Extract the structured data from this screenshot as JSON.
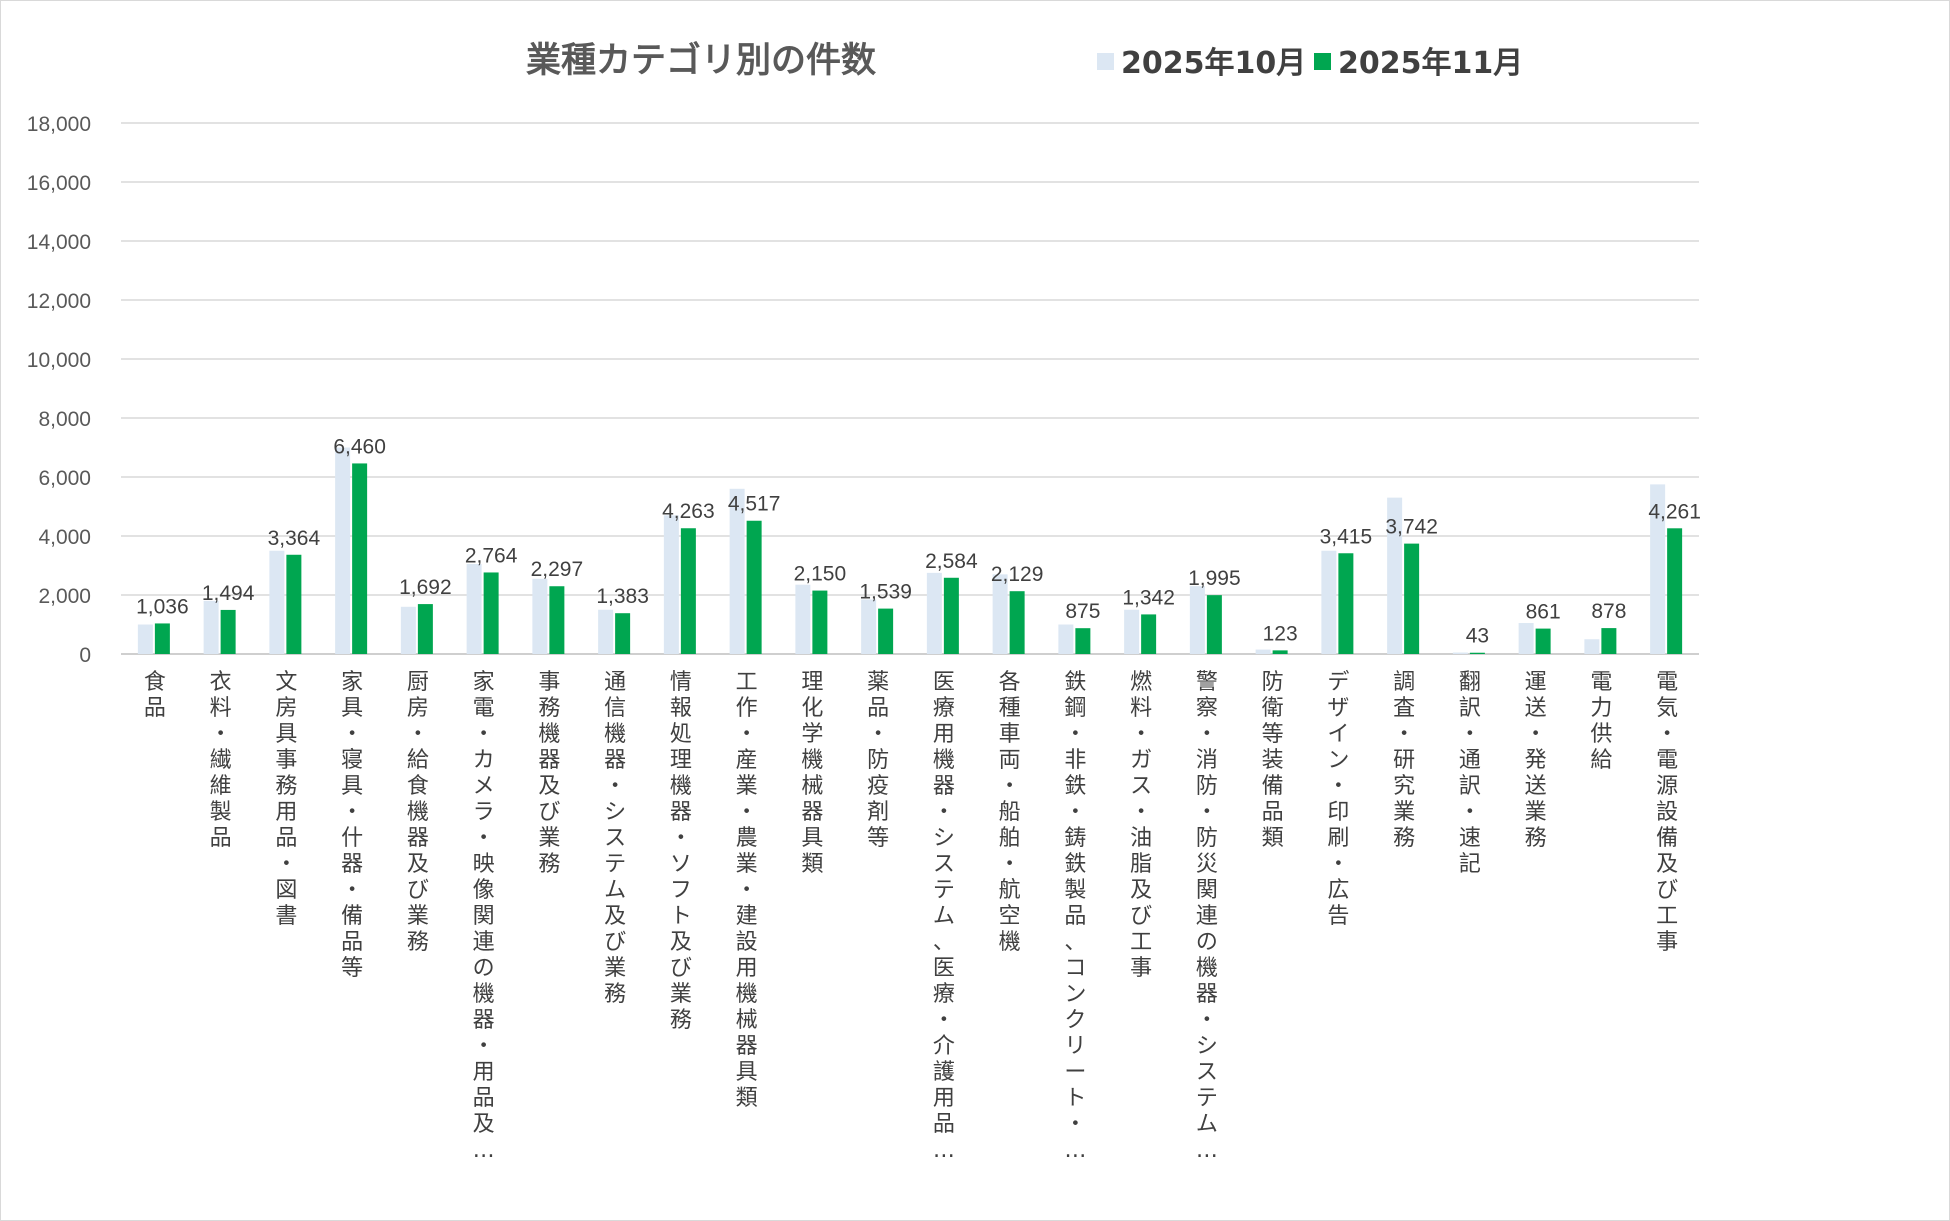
{
  "chart_data": {
    "type": "bar",
    "title": "業種カテゴリ別の件数",
    "xlabel": "",
    "ylabel": "",
    "ylim": [
      0,
      18000
    ],
    "yticks": [
      0,
      2000,
      4000,
      6000,
      8000,
      10000,
      12000,
      14000,
      16000,
      18000
    ],
    "ytick_labels": [
      "0",
      "2,000",
      "4,000",
      "6,000",
      "8,000",
      "10,000",
      "12,000",
      "14,000",
      "16,000",
      "18,000"
    ],
    "grid": true,
    "legend_position": "top",
    "categories": [
      "食品",
      "衣料・繊維製品",
      "文房具事務用品・図書",
      "家具・寝具・什器・備品等",
      "厨房・給食機器及び業務",
      "家電・カメラ・映像関連の機器・用品及…",
      "事務機器及び業務",
      "通信機器・システム及び業務",
      "情報処理機器・ソフト及び業務",
      "工作・産業・農業・建設用機械器具類",
      "理化学機械器具類",
      "薬品・防疫剤等",
      "医療用機器・システム、医療・介護用品…",
      "各種車両・船舶・航空機",
      "鉄鋼・非鉄・鋳鉄製品、コンクリート・…",
      "燃料・ガス・油脂及び工事",
      "警察・消防・防災関連の機器・システム…",
      "防衛等装備品類",
      "デザイン・印刷・広告",
      "調査・研究業務",
      "翻訳・通訳・速記",
      "運送・発送業務",
      "電力供給",
      "電気・電源設備及び工事"
    ],
    "series": [
      {
        "name": "2025年10月",
        "color": "#dce7f3",
        "values": [
          1000,
          1800,
          3500,
          7000,
          1600,
          3050,
          2550,
          1500,
          4700,
          5600,
          2350,
          1850,
          2750,
          2700,
          1000,
          1500,
          2300,
          150,
          3500,
          5300,
          50,
          1050,
          500,
          5750
        ]
      },
      {
        "name": "2025年11月",
        "color": "#00a650",
        "values": [
          1036,
          1494,
          3364,
          6460,
          1692,
          2764,
          2297,
          1383,
          4263,
          4517,
          2150,
          1539,
          2584,
          2129,
          875,
          1342,
          1995,
          123,
          3415,
          3742,
          43,
          861,
          878,
          4261
        ],
        "data_labels": [
          "1,036",
          "1,494",
          "3,364",
          "6,460",
          "1,692",
          "2,764",
          "2,297",
          "1,383",
          "4,263",
          "4,517",
          "2,150",
          "1,539",
          "2,584",
          "2,129",
          "875",
          "1,342",
          "1,995",
          "123",
          "3,415",
          "3,742",
          "43",
          "861",
          "878",
          "4,261"
        ]
      }
    ]
  }
}
